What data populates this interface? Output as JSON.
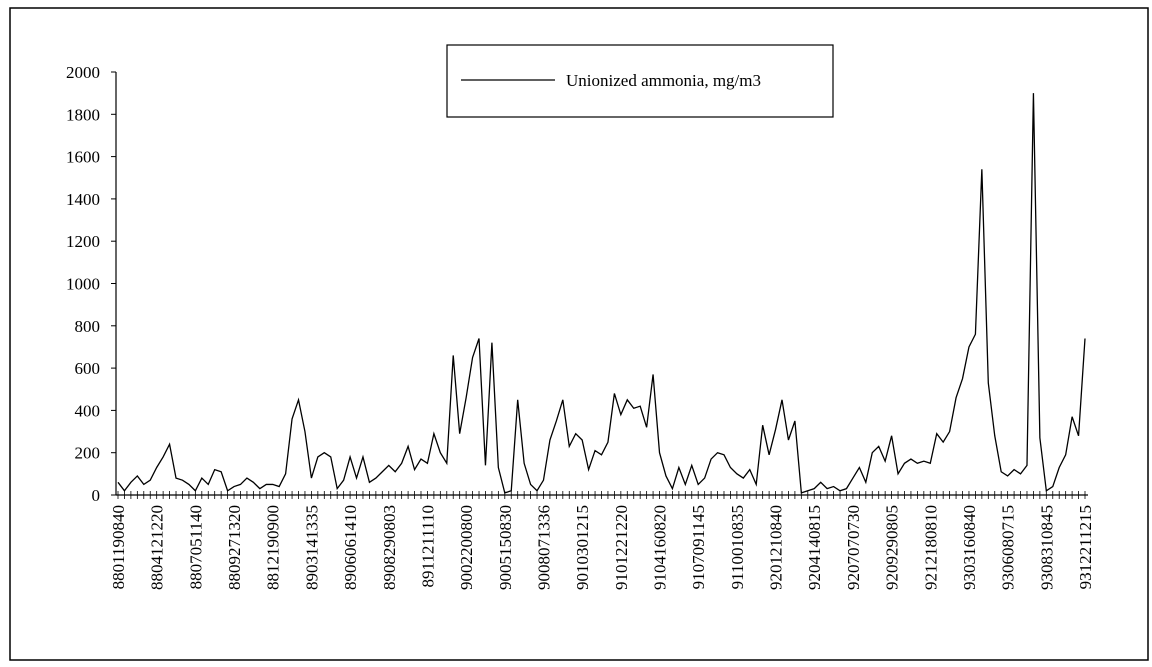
{
  "chart_data": {
    "type": "line",
    "categories": [
      "8801190840",
      null,
      null,
      null,
      null,
      null,
      "8804121220",
      null,
      null,
      null,
      null,
      null,
      "8807051140",
      null,
      null,
      null,
      null,
      null,
      "8809271320",
      null,
      null,
      null,
      null,
      null,
      "8812190900",
      null,
      null,
      null,
      null,
      null,
      "8903141335",
      null,
      null,
      null,
      null,
      null,
      "8906061410",
      null,
      null,
      null,
      null,
      null,
      "8908290803",
      null,
      null,
      null,
      null,
      null,
      "8911211110",
      null,
      null,
      null,
      null,
      null,
      "9002200800",
      null,
      null,
      null,
      null,
      null,
      "9005150830",
      null,
      null,
      null,
      null,
      null,
      "9008071336",
      null,
      null,
      null,
      null,
      null,
      "9010301215",
      null,
      null,
      null,
      null,
      null,
      "9101221220",
      null,
      null,
      null,
      null,
      null,
      "9104160820",
      null,
      null,
      null,
      null,
      null,
      "9107091145",
      null,
      null,
      null,
      null,
      null,
      "9110010835",
      null,
      null,
      null,
      null,
      null,
      "9201210840",
      null,
      null,
      null,
      null,
      null,
      "9204140815",
      null,
      null,
      null,
      null,
      null,
      "9207070730",
      null,
      null,
      null,
      null,
      null,
      "9209290805",
      null,
      null,
      null,
      null,
      null,
      "9212180810",
      null,
      null,
      null,
      null,
      null,
      "9303160840",
      null,
      null,
      null,
      null,
      null,
      "9306080715",
      null,
      null,
      null,
      null,
      null,
      "9308310845",
      null,
      null,
      null,
      null,
      null,
      "9312211215"
    ],
    "series": [
      {
        "name": "Unionized ammonia, mg/m3",
        "color": "#000000",
        "values": [
          60,
          20,
          60,
          90,
          50,
          70,
          130,
          180,
          240,
          80,
          70,
          50,
          20,
          80,
          50,
          120,
          110,
          20,
          40,
          50,
          80,
          60,
          30,
          50,
          50,
          40,
          100,
          360,
          450,
          300,
          80,
          180,
          200,
          180,
          30,
          70,
          180,
          80,
          180,
          60,
          80,
          110,
          140,
          110,
          150,
          230,
          120,
          170,
          150,
          290,
          200,
          150,
          660,
          290,
          460,
          650,
          740,
          140,
          720,
          130,
          10,
          20,
          450,
          150,
          50,
          20,
          70,
          260,
          350,
          450,
          230,
          290,
          260,
          120,
          210,
          190,
          250,
          480,
          380,
          450,
          410,
          420,
          320,
          570,
          200,
          90,
          30,
          130,
          50,
          140,
          50,
          80,
          170,
          200,
          190,
          130,
          100,
          80,
          120,
          50,
          330,
          190,
          310,
          450,
          260,
          350,
          10,
          20,
          30,
          60,
          30,
          40,
          20,
          30,
          80,
          130,
          60,
          200,
          230,
          160,
          280,
          100,
          150,
          170,
          150,
          160,
          150,
          290,
          250,
          300,
          460,
          550,
          700,
          760,
          1540,
          530,
          280,
          110,
          90,
          120,
          100,
          140,
          1900,
          270,
          20,
          40,
          130,
          190,
          370,
          280,
          740
        ]
      }
    ],
    "ylim": [
      0,
      2000
    ],
    "yticks": [
      0,
      200,
      400,
      600,
      800,
      1000,
      1200,
      1400,
      1600,
      1800,
      2000
    ],
    "grid": false
  }
}
